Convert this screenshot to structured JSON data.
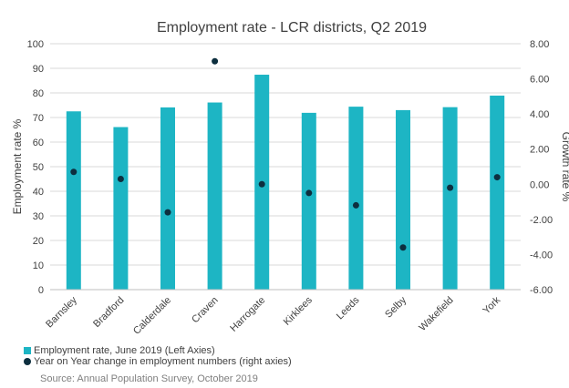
{
  "chart_data": {
    "type": "bar",
    "title": "Employment rate - LCR districts, Q2 2019",
    "categories": [
      "Barnsley",
      "Bradford",
      "Calderdale",
      "Craven",
      "Harrogate",
      "Kirklees",
      "Leeds",
      "Selby",
      "Wakefield",
      "York"
    ],
    "y_left": {
      "label": "Employment rate %",
      "ylim": [
        0,
        100
      ],
      "ticks": [
        "0",
        "10",
        "20",
        "30",
        "40",
        "50",
        "60",
        "70",
        "80",
        "90",
        "100"
      ]
    },
    "y_right": {
      "label": "Growth rate %",
      "ylim": [
        -6,
        8
      ],
      "ticks": [
        "-6.00",
        "-4.00",
        "-2.00",
        "0.00",
        "2.00",
        "4.00",
        "6.00",
        "8.00"
      ]
    },
    "series": [
      {
        "name": "Employment rate, June 2019 (Left Axies)",
        "kind": "bar",
        "axis": "left",
        "color": "#1DB5C4",
        "values": [
          72.5,
          66.1,
          74.1,
          76.1,
          87.4,
          71.9,
          74.4,
          73.0,
          74.2,
          78.9
        ]
      },
      {
        "name": "Year on Year change in employment numbers (right axies)",
        "kind": "scatter",
        "axis": "right",
        "color": "#0D2F3F",
        "values": [
          0.7,
          0.3,
          -1.6,
          7.0,
          0.0,
          -0.5,
          -1.2,
          -3.6,
          -0.2,
          0.4
        ]
      }
    ],
    "grid": true,
    "legend_position": "bottom-left"
  },
  "source": "Source: Annual Population Survey, October 2019"
}
